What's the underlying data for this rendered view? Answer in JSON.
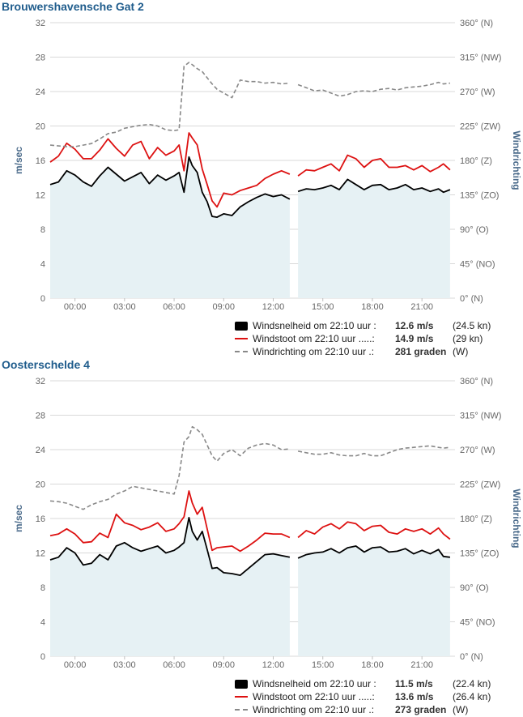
{
  "chart_data": [
    {
      "type": "line",
      "title": "Brouwershavensche Gat 2",
      "ylabel": "m/sec",
      "y2label": "Windrichting",
      "ylim": [
        0,
        32
      ],
      "y2lim": [
        0,
        360
      ],
      "yticks": [
        "0",
        "4",
        "8",
        "12",
        "16",
        "20",
        "24",
        "28",
        "32"
      ],
      "y2ticks": [
        "0° (N)",
        "45° (NO)",
        "90° (O)",
        "135° (ZO)",
        "180° (Z)",
        "225° (ZW)",
        "270° (W)",
        "315° (NW)",
        "360° (N)"
      ],
      "xticks": [
        "00:00",
        "03:00",
        "06:00",
        "09:00",
        "12:00",
        "15:00",
        "18:00",
        "21:00"
      ],
      "xlim": [
        -1.5,
        23
      ],
      "gap": [
        13.1,
        13.4
      ],
      "series": [
        {
          "name": "Windsnelheid",
          "color": "#000000",
          "x": [
            -1.5,
            -1,
            -0.5,
            0,
            0.5,
            1,
            1.5,
            2,
            2.5,
            3,
            3.5,
            4,
            4.5,
            5,
            5.5,
            6,
            6.3,
            6.6,
            6.9,
            7.1,
            7.4,
            7.7,
            8,
            8.3,
            8.6,
            9,
            9.5,
            10,
            10.5,
            11,
            11.5,
            12,
            12.5,
            13,
            13.5,
            14,
            14.5,
            15,
            15.5,
            16,
            16.5,
            17,
            17.5,
            18,
            18.5,
            19,
            19.5,
            20,
            20.5,
            21,
            21.5,
            22,
            22.3,
            22.7
          ],
          "y": [
            13.2,
            13.5,
            14.8,
            14.3,
            13.5,
            13,
            14.2,
            15.2,
            14.4,
            13.6,
            14.1,
            14.6,
            13.3,
            14.3,
            13.7,
            14.2,
            14.6,
            12.3,
            16.4,
            15.4,
            14.6,
            12.3,
            11.2,
            9.5,
            9.4,
            9.8,
            9.6,
            10.6,
            11.2,
            11.7,
            12.1,
            11.8,
            12,
            11.5,
            12.4,
            12.7,
            12.6,
            12.8,
            13.1,
            12.6,
            13.8,
            13.2,
            12.6,
            13.1,
            13.2,
            12.6,
            12.8,
            13.2,
            12.6,
            12.8,
            12.4,
            12.7,
            12.3,
            12.6
          ]
        },
        {
          "name": "Windstoot",
          "color": "#dd1111",
          "x": [
            -1.5,
            -1,
            -0.5,
            0,
            0.5,
            1,
            1.5,
            2,
            2.5,
            3,
            3.5,
            4,
            4.5,
            5,
            5.5,
            6,
            6.3,
            6.6,
            6.9,
            7.1,
            7.4,
            7.7,
            8,
            8.3,
            8.6,
            9,
            9.5,
            10,
            10.5,
            11,
            11.5,
            12,
            12.5,
            13,
            13.5,
            14,
            14.5,
            15,
            15.5,
            16,
            16.5,
            17,
            17.5,
            18,
            18.5,
            19,
            19.5,
            20,
            20.5,
            21,
            21.5,
            22,
            22.3,
            22.7
          ],
          "y": [
            15.8,
            16.5,
            18,
            17.3,
            16.2,
            16.2,
            17.2,
            18.5,
            17.4,
            16.5,
            17.8,
            18.2,
            16.2,
            17.5,
            16.6,
            17.1,
            17.8,
            14.8,
            19.2,
            18.6,
            17.8,
            15,
            13.2,
            11.3,
            10.6,
            12.2,
            12,
            12.5,
            12.8,
            13.1,
            13.9,
            14.4,
            14.8,
            14.4,
            14.2,
            14.9,
            14.8,
            15.2,
            15.6,
            14.8,
            16.6,
            16.2,
            15.2,
            16,
            16.2,
            15.2,
            15.2,
            15.4,
            14.9,
            15.4,
            14.7,
            15.2,
            15.6,
            14.9
          ]
        },
        {
          "name": "Windrichting",
          "color": "#888888",
          "axis": "right",
          "x": [
            -1.5,
            -1,
            -0.5,
            0,
            0.5,
            1,
            1.5,
            2,
            2.5,
            3,
            3.5,
            4,
            4.5,
            5,
            5.5,
            6,
            6.3,
            6.6,
            6.9,
            7.1,
            7.4,
            7.7,
            8,
            8.3,
            8.6,
            9,
            9.5,
            10,
            10.5,
            11,
            11.5,
            12,
            12.5,
            13,
            13.5,
            14,
            14.5,
            15,
            15.5,
            16,
            16.5,
            17,
            17.5,
            18,
            18.5,
            19,
            19.5,
            20,
            20.5,
            21,
            21.5,
            22,
            22.3,
            22.7
          ],
          "y": [
            200,
            199,
            198,
            198,
            200,
            202,
            208,
            215,
            217,
            222,
            224,
            226,
            227,
            225,
            220,
            219,
            220,
            303,
            308,
            305,
            300,
            296,
            288,
            280,
            273,
            268,
            262,
            285,
            283,
            283,
            281,
            282,
            280,
            281,
            279,
            275,
            271,
            272,
            268,
            264,
            266,
            270,
            271,
            270,
            273,
            274,
            272,
            275,
            276,
            277,
            279,
            282,
            280,
            281
          ]
        }
      ]
    },
    {
      "type": "line",
      "title": "Oosterschelde 4",
      "ylabel": "m/sec",
      "y2label": "Windrichting",
      "ylim": [
        0,
        32
      ],
      "y2lim": [
        0,
        360
      ],
      "yticks": [
        "0",
        "4",
        "8",
        "12",
        "16",
        "20",
        "24",
        "28",
        "32"
      ],
      "y2ticks": [
        "0° (N)",
        "45° (NO)",
        "90° (O)",
        "135° (ZO)",
        "180° (Z)",
        "225° (ZW)",
        "270° (W)",
        "315° (NW)",
        "360° (N)"
      ],
      "xticks": [
        "00:00",
        "03:00",
        "06:00",
        "09:00",
        "12:00",
        "15:00",
        "18:00",
        "21:00"
      ],
      "xlim": [
        -1.5,
        23
      ],
      "gap": [
        13.1,
        13.4
      ],
      "series": [
        {
          "name": "Windsnelheid",
          "color": "#000000",
          "x": [
            -1.5,
            -1,
            -0.5,
            0,
            0.5,
            1,
            1.5,
            2,
            2.5,
            3,
            3.5,
            4,
            4.5,
            5,
            5.5,
            6,
            6.3,
            6.6,
            6.9,
            7.1,
            7.4,
            7.7,
            8,
            8.3,
            8.6,
            9,
            9.5,
            10,
            10.5,
            11,
            11.5,
            12,
            12.5,
            13,
            13.5,
            14,
            14.5,
            15,
            15.5,
            16,
            16.5,
            17,
            17.5,
            18,
            18.5,
            19,
            19.5,
            20,
            20.5,
            21,
            21.5,
            22,
            22.3,
            22.7
          ],
          "y": [
            11.2,
            11.5,
            12.6,
            12,
            10.6,
            10.8,
            11.8,
            11.2,
            12.8,
            13.2,
            12.6,
            12.2,
            12.5,
            12.8,
            12,
            12.3,
            12.7,
            13.2,
            16.1,
            14.5,
            13.5,
            14.5,
            12.4,
            10.2,
            10.3,
            9.7,
            9.6,
            9.4,
            10.2,
            11,
            11.8,
            11.9,
            11.7,
            11.5,
            11.4,
            11.8,
            12,
            12.1,
            12.5,
            12,
            12.6,
            12.8,
            12.1,
            12.6,
            12.7,
            12.1,
            12.2,
            12.5,
            11.9,
            12.3,
            11.9,
            12.4,
            11.6,
            11.5
          ]
        },
        {
          "name": "Windstoot",
          "color": "#dd1111",
          "x": [
            -1.5,
            -1,
            -0.5,
            0,
            0.5,
            1,
            1.5,
            2,
            2.5,
            3,
            3.5,
            4,
            4.5,
            5,
            5.5,
            6,
            6.3,
            6.6,
            6.9,
            7.1,
            7.4,
            7.7,
            8,
            8.3,
            8.6,
            9,
            9.5,
            10,
            10.5,
            11,
            11.5,
            12,
            12.5,
            13,
            13.5,
            14,
            14.5,
            15,
            15.5,
            16,
            16.5,
            17,
            17.5,
            18,
            18.5,
            19,
            19.5,
            20,
            20.5,
            21,
            21.5,
            22,
            22.3,
            22.7
          ],
          "y": [
            14,
            14.2,
            14.8,
            14.2,
            13.2,
            13.3,
            14.3,
            13.8,
            16.5,
            15.5,
            15.2,
            14.7,
            15,
            15.5,
            14.5,
            14.8,
            15.4,
            16.2,
            19.2,
            17.8,
            16.5,
            17.3,
            14.8,
            12.3,
            12.6,
            12.7,
            12.8,
            12.2,
            12.8,
            13.5,
            14.3,
            14.2,
            14.2,
            13.8,
            13.8,
            14.6,
            14.2,
            15,
            15.4,
            14.8,
            15.6,
            15.4,
            14.6,
            15.1,
            15.2,
            14.4,
            14.2,
            14.8,
            14.5,
            14.8,
            14.2,
            14.9,
            14.2,
            13.6
          ]
        },
        {
          "name": "Windrichting",
          "color": "#888888",
          "axis": "right",
          "x": [
            -1.5,
            -1,
            -0.5,
            0,
            0.5,
            1,
            1.5,
            2,
            2.5,
            3,
            3.5,
            4,
            4.5,
            5,
            5.5,
            6,
            6.3,
            6.6,
            6.9,
            7.1,
            7.4,
            7.7,
            8,
            8.3,
            8.6,
            9,
            9.5,
            10,
            10.5,
            11,
            11.5,
            12,
            12.5,
            13,
            13.5,
            14,
            14.5,
            15,
            15.5,
            16,
            16.5,
            17,
            17.5,
            18,
            18.5,
            19,
            19.5,
            20,
            20.5,
            21,
            21.5,
            22,
            22.3,
            22.7
          ],
          "y": [
            203,
            202,
            200,
            196,
            192,
            198,
            202,
            205,
            212,
            216,
            222,
            220,
            218,
            216,
            214,
            212,
            236,
            280,
            287,
            300,
            296,
            290,
            276,
            262,
            255,
            265,
            270,
            262,
            272,
            276,
            278,
            276,
            270,
            271,
            268,
            266,
            264,
            264,
            266,
            263,
            262,
            262,
            265,
            262,
            262,
            266,
            270,
            272,
            273,
            274,
            275,
            273,
            272,
            273
          ]
        }
      ]
    }
  ],
  "legends": [
    [
      {
        "label": "Windsnelheid om 22:10 uur :",
        "value": "12.6 m/s",
        "extra": "(24.5 kn)"
      },
      {
        "label": "Windstoot om 22:10 uur .....:",
        "value": "14.9 m/s",
        "extra": "(29 kn)"
      },
      {
        "label": "Windrichting om 22:10 uur .:",
        "value": "281 graden",
        "extra": "(W)"
      }
    ],
    [
      {
        "label": "Windsnelheid om 22:10 uur :",
        "value": "11.5 m/s",
        "extra": "(22.4 kn)"
      },
      {
        "label": "Windstoot om 22:10 uur .....:",
        "value": "13.6 m/s",
        "extra": "(26.4 kn)"
      },
      {
        "label": "Windrichting om 22:10 uur .:",
        "value": "273 graden",
        "extra": "(W)"
      }
    ]
  ],
  "colors": {
    "area_fill": "#e6f1f4",
    "grid": "#d9d9d9",
    "axis_text": "#666666",
    "title": "#1f5c8c"
  }
}
